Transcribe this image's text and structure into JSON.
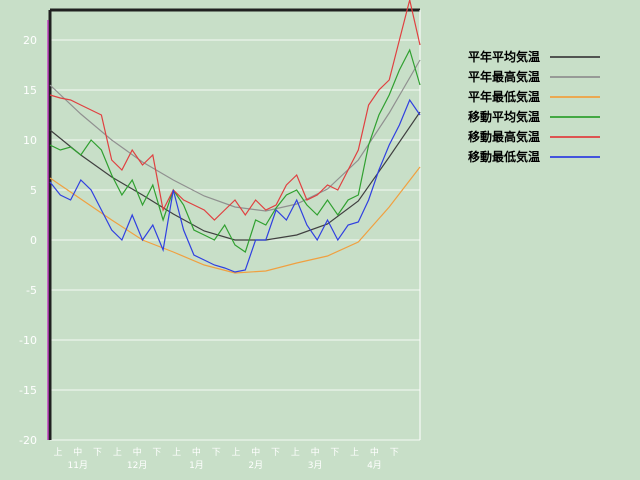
{
  "chart_data": {
    "type": "line",
    "ylim": [
      -20,
      23
    ],
    "yticks": [
      "20",
      "15",
      "10",
      "5",
      "0",
      "-5",
      "-10",
      "-15",
      "-20"
    ],
    "ytick_values": [
      20,
      15,
      10,
      5,
      0,
      -5,
      -10,
      -15,
      -20
    ],
    "xlim": [
      0,
      180
    ],
    "grid": true,
    "legend_position": "top-right",
    "x_subticks": [
      "上",
      "中",
      "下",
      "上",
      "中",
      "下",
      "上",
      "中",
      "下",
      "上",
      "中",
      "下",
      "上",
      "中",
      "下",
      "上",
      "中",
      "下"
    ],
    "x_months": [
      "11月",
      "12月",
      "1月",
      "2月",
      "3月",
      "4月"
    ],
    "series": [
      {
        "name": "平年平均気温",
        "color": "#404040",
        "x": [
          0,
          15,
          30,
          45,
          60,
          75,
          90,
          105,
          120,
          135,
          150,
          165,
          180
        ],
        "y": [
          11,
          8.5,
          6.3,
          4.5,
          2.6,
          0.9,
          0,
          0,
          0.5,
          1.6,
          3.9,
          8.3,
          12.8
        ]
      },
      {
        "name": "平年最高気温",
        "color": "#909090",
        "x": [
          0,
          15,
          30,
          45,
          60,
          75,
          90,
          105,
          120,
          135,
          150,
          165,
          180
        ],
        "y": [
          15.5,
          12.6,
          10,
          7.8,
          6,
          4.4,
          3.3,
          2.9,
          3.6,
          5.1,
          8,
          12.7,
          18
        ]
      },
      {
        "name": "平年最低気温",
        "color": "#f0a040",
        "x": [
          0,
          15,
          30,
          45,
          60,
          75,
          90,
          105,
          120,
          135,
          150,
          165,
          180
        ],
        "y": [
          6.2,
          4.1,
          2,
          0,
          -1.2,
          -2.5,
          -3.3,
          -3.1,
          -2.3,
          -1.6,
          -0.2,
          3.3,
          7.3
        ]
      },
      {
        "name": "移動平均気温",
        "color": "#30a030",
        "x": [
          0,
          5,
          10,
          15,
          20,
          25,
          30,
          35,
          40,
          45,
          50,
          55,
          60,
          65,
          70,
          75,
          80,
          85,
          90,
          95,
          100,
          105,
          110,
          115,
          120,
          125,
          130,
          135,
          140,
          145,
          150,
          155,
          160,
          165,
          170,
          175,
          180
        ],
        "y": [
          9.5,
          9,
          9.3,
          8.5,
          10,
          9,
          6.5,
          4.5,
          6,
          3.5,
          5.5,
          2,
          5,
          3.5,
          1,
          0.5,
          0,
          1.5,
          -0.5,
          -1.2,
          2,
          1.5,
          3.2,
          4.5,
          5,
          3.5,
          2.5,
          4,
          2.5,
          4,
          4.5,
          9.5,
          12.5,
          14.5,
          17,
          19,
          15.5
        ]
      },
      {
        "name": "移動最高気温",
        "color": "#e04040",
        "x": [
          0,
          5,
          10,
          15,
          20,
          25,
          30,
          35,
          40,
          45,
          50,
          55,
          60,
          65,
          70,
          75,
          80,
          85,
          90,
          95,
          100,
          105,
          110,
          115,
          120,
          125,
          130,
          135,
          140,
          145,
          150,
          155,
          160,
          165,
          170,
          175,
          180
        ],
        "y": [
          14.5,
          14.2,
          14,
          13.5,
          13,
          12.5,
          8,
          7,
          9,
          7.5,
          8.5,
          3,
          5,
          4,
          3.5,
          3,
          2,
          3,
          4,
          2.5,
          4,
          3,
          3.5,
          5.5,
          6.5,
          4,
          4.5,
          5.5,
          5,
          7,
          9,
          13.5,
          15,
          16,
          20,
          24,
          19.5
        ]
      },
      {
        "name": "移動最低気温",
        "color": "#3040e0",
        "x": [
          0,
          5,
          10,
          15,
          20,
          25,
          30,
          35,
          40,
          45,
          50,
          55,
          60,
          65,
          70,
          75,
          80,
          85,
          90,
          95,
          100,
          105,
          110,
          115,
          120,
          125,
          130,
          135,
          140,
          145,
          150,
          155,
          160,
          165,
          170,
          175,
          180
        ],
        "y": [
          5.8,
          4.5,
          4,
          6,
          5,
          3,
          1,
          0,
          2.5,
          0,
          1.5,
          -1,
          5,
          1,
          -1.5,
          -2,
          -2.5,
          -2.8,
          -3.2,
          -3,
          0,
          0,
          3,
          2,
          4,
          1.5,
          0,
          2,
          0,
          1.5,
          1.8,
          4,
          7,
          9.5,
          11.5,
          14,
          12.5
        ]
      }
    ]
  }
}
